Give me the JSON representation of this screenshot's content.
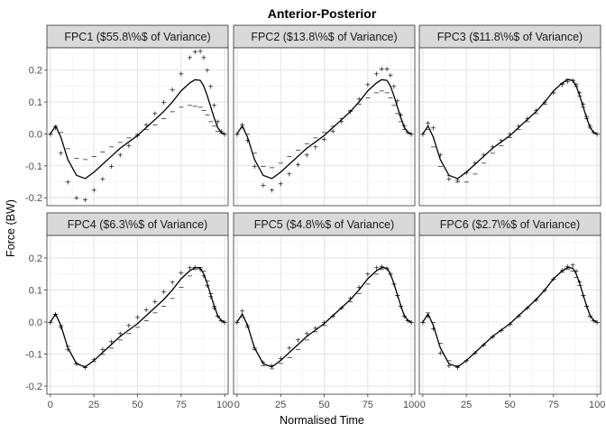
{
  "chart_data": {
    "type": "line",
    "title": "Anterior-Posterior",
    "xlabel": "Normalised Time",
    "ylabel": "Force (BW)",
    "xlim": [
      -2,
      102
    ],
    "ylim": [
      -0.225,
      0.27
    ],
    "xticks": [
      "0",
      "25",
      "50",
      "75",
      "100"
    ],
    "yticks": [
      "-0.2",
      "-0.1",
      "0.0",
      "0.1",
      "0.2"
    ],
    "grid": true,
    "x": [
      0,
      3,
      6,
      10,
      15,
      20,
      25,
      30,
      35,
      40,
      45,
      50,
      55,
      60,
      65,
      70,
      75,
      80,
      83,
      86,
      88,
      90,
      92,
      94,
      96,
      98,
      100
    ],
    "mean_curve": [
      0.0,
      0.025,
      -0.01,
      -0.08,
      -0.13,
      -0.14,
      -0.12,
      -0.095,
      -0.07,
      -0.045,
      -0.025,
      -0.005,
      0.02,
      0.045,
      0.07,
      0.1,
      0.135,
      0.16,
      0.17,
      0.168,
      0.15,
      0.12,
      0.085,
      0.05,
      0.02,
      0.005,
      0.0
    ],
    "panels": [
      {
        "label": "FPC1 ($55.8\\%$ of Variance)",
        "plus": [
          0.0,
          0.02,
          -0.06,
          -0.15,
          -0.2,
          -0.205,
          -0.175,
          -0.14,
          -0.1,
          -0.065,
          -0.035,
          -0.005,
          0.03,
          0.065,
          0.1,
          0.14,
          0.19,
          0.24,
          0.258,
          0.26,
          0.24,
          0.2,
          0.15,
          0.09,
          0.04,
          0.01,
          0.0
        ],
        "minus": [
          0.0,
          0.025,
          0.005,
          -0.045,
          -0.075,
          -0.08,
          -0.07,
          -0.055,
          -0.04,
          -0.025,
          -0.012,
          0.0,
          0.015,
          0.03,
          0.05,
          0.07,
          0.085,
          0.09,
          0.088,
          0.085,
          0.075,
          0.06,
          0.04,
          0.025,
          0.01,
          0.003,
          0.0
        ]
      },
      {
        "label": "FPC2 ($13.8\\%$ of Variance)",
        "plus": [
          0.0,
          0.03,
          -0.02,
          -0.1,
          -0.16,
          -0.175,
          -0.155,
          -0.125,
          -0.095,
          -0.065,
          -0.04,
          -0.015,
          0.01,
          0.04,
          0.07,
          0.11,
          0.155,
          0.19,
          0.205,
          0.205,
          0.185,
          0.15,
          0.105,
          0.06,
          0.025,
          0.005,
          0.0
        ],
        "minus": [
          0.0,
          0.02,
          0.0,
          -0.06,
          -0.1,
          -0.105,
          -0.09,
          -0.07,
          -0.05,
          -0.03,
          -0.012,
          0.005,
          0.025,
          0.05,
          0.075,
          0.095,
          0.115,
          0.13,
          0.135,
          0.13,
          0.115,
          0.09,
          0.065,
          0.04,
          0.015,
          0.005,
          0.0
        ]
      },
      {
        "label": "FPC3 ($11.8\\%$ of Variance)",
        "plus": [
          0.0,
          0.035,
          0.02,
          -0.065,
          -0.14,
          -0.145,
          -0.12,
          -0.09,
          -0.065,
          -0.04,
          -0.02,
          0.0,
          0.025,
          0.05,
          0.075,
          0.1,
          0.13,
          0.155,
          0.165,
          0.168,
          0.155,
          0.13,
          0.095,
          0.055,
          0.025,
          0.005,
          0.0
        ],
        "minus": [
          0.0,
          0.015,
          -0.04,
          -0.1,
          -0.13,
          -0.15,
          -0.15,
          -0.125,
          -0.09,
          -0.06,
          -0.035,
          -0.01,
          0.015,
          0.04,
          0.065,
          0.095,
          0.13,
          0.16,
          0.172,
          0.17,
          0.15,
          0.12,
          0.085,
          0.05,
          0.02,
          0.005,
          0.0
        ]
      },
      {
        "label": "FPC4 ($6.3\\%$ of Variance)",
        "plus": [
          0.0,
          0.025,
          -0.015,
          -0.085,
          -0.13,
          -0.14,
          -0.115,
          -0.085,
          -0.06,
          -0.035,
          -0.01,
          0.015,
          0.04,
          0.065,
          0.095,
          0.125,
          0.155,
          0.17,
          0.172,
          0.165,
          0.145,
          0.115,
          0.08,
          0.045,
          0.02,
          0.005,
          0.0
        ],
        "minus": [
          0.0,
          0.025,
          -0.01,
          -0.075,
          -0.128,
          -0.14,
          -0.122,
          -0.1,
          -0.08,
          -0.055,
          -0.035,
          -0.015,
          0.005,
          0.03,
          0.05,
          0.075,
          0.11,
          0.145,
          0.165,
          0.172,
          0.16,
          0.13,
          0.09,
          0.05,
          0.02,
          0.005,
          0.0
        ]
      },
      {
        "label": "FPC5 ($4.8\\%$ of Variance)",
        "plus": [
          0.0,
          0.035,
          -0.01,
          -0.08,
          -0.125,
          -0.135,
          -0.112,
          -0.08,
          -0.055,
          -0.035,
          -0.018,
          0.0,
          0.02,
          0.045,
          0.075,
          0.11,
          0.15,
          0.17,
          0.175,
          0.168,
          0.15,
          0.12,
          0.085,
          0.05,
          0.02,
          0.005,
          0.0
        ],
        "minus": [
          0.0,
          0.015,
          -0.015,
          -0.085,
          -0.135,
          -0.145,
          -0.128,
          -0.11,
          -0.085,
          -0.055,
          -0.03,
          -0.01,
          0.02,
          0.045,
          0.065,
          0.09,
          0.12,
          0.15,
          0.165,
          0.168,
          0.15,
          0.12,
          0.085,
          0.05,
          0.02,
          0.005,
          0.0
        ]
      },
      {
        "label": "FPC6 ($2.7\\%$ of Variance)",
        "plus": [
          0.0,
          0.02,
          -0.02,
          -0.095,
          -0.135,
          -0.14,
          -0.12,
          -0.095,
          -0.07,
          -0.045,
          -0.025,
          -0.005,
          0.02,
          0.045,
          0.07,
          0.1,
          0.135,
          0.162,
          0.175,
          0.178,
          0.16,
          0.125,
          0.085,
          0.05,
          0.02,
          0.005,
          0.0
        ],
        "minus": [
          0.0,
          0.03,
          0.0,
          -0.065,
          -0.12,
          -0.135,
          -0.12,
          -0.095,
          -0.07,
          -0.045,
          -0.025,
          -0.005,
          0.02,
          0.045,
          0.07,
          0.1,
          0.135,
          0.158,
          0.165,
          0.16,
          0.14,
          0.115,
          0.085,
          0.05,
          0.02,
          0.005,
          0.0
        ]
      }
    ]
  }
}
